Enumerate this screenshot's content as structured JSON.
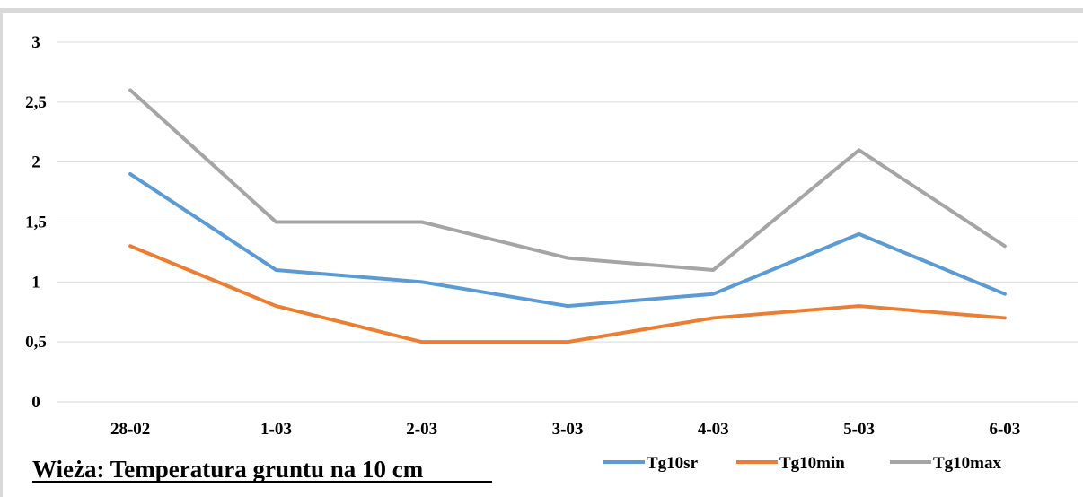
{
  "chart_data": {
    "type": "line",
    "title": "Wieża: Temperatura gruntu na 10 cm",
    "xlabel": "",
    "ylabel": "",
    "categories": [
      "28-02",
      "1-03",
      "2-03",
      "3-03",
      "4-03",
      "5-03",
      "6-03"
    ],
    "ylim": [
      0,
      3
    ],
    "yticks": [
      "0",
      "0,5",
      "1",
      "1,5",
      "2",
      "2,5",
      "3"
    ],
    "grid": true,
    "legend_position": "bottom-right",
    "series": [
      {
        "name": "Tg10sr",
        "color": "#5b9bd5",
        "values": [
          1.9,
          1.1,
          1.0,
          0.8,
          0.9,
          1.4,
          0.9
        ]
      },
      {
        "name": "Tg10min",
        "color": "#ed7d31",
        "values": [
          1.3,
          0.8,
          0.5,
          0.5,
          0.7,
          0.8,
          0.7
        ]
      },
      {
        "name": "Tg10max",
        "color": "#a5a5a5",
        "values": [
          2.6,
          1.5,
          1.5,
          1.2,
          1.1,
          2.1,
          1.3
        ]
      }
    ]
  }
}
